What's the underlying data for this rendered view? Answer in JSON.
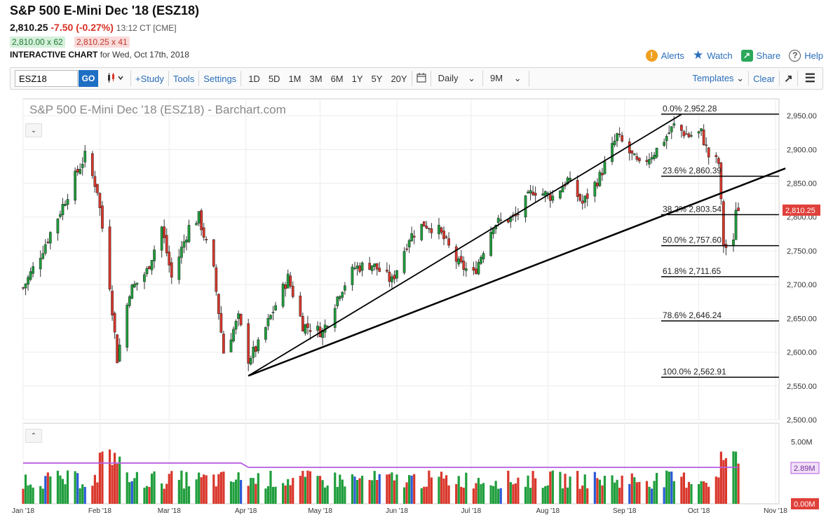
{
  "header": {
    "title": "S&P 500 E-Mini Dec '18 (ESZ18)",
    "last": "2,810.25",
    "change": "-7.50 (-0.27%)",
    "time": "13:12 CT [CME]",
    "bid": "2,810.00 x 62",
    "ask": "2,810.25 x 41",
    "interactive_label": "INTERACTIVE CHART",
    "date_text": "for Wed, Oct 17th, 2018"
  },
  "top_links": {
    "alerts": "Alerts",
    "watch": "Watch",
    "share": "Share",
    "help": "Help"
  },
  "toolbar": {
    "symbol_value": "ESZ18",
    "go": "GO",
    "study": "+Study",
    "tools": "Tools",
    "settings": "Settings",
    "periods": [
      "1D",
      "5D",
      "1M",
      "3M",
      "6M",
      "1Y",
      "5Y",
      "20Y"
    ],
    "interval": "Daily",
    "range": "9M",
    "templates": "Templates",
    "clear": "Clear"
  },
  "colors": {
    "up": "#1f9e3c",
    "down": "#d9362b",
    "blue": "#2a5bd7",
    "purple": "#b65ce0",
    "line": "#000000",
    "price_badge": "#e0403a"
  },
  "chart_data": {
    "type": "candlestick",
    "title": "S&P 500 E-Mini Dec '18 (ESZ18) - Barchart.com",
    "ylim": [
      2500,
      2975
    ],
    "yticks": [
      "2,950.00",
      "2,900.00",
      "2,850.00",
      "2,800.00",
      "2,750.00",
      "2,700.00",
      "2,650.00",
      "2,600.00",
      "2,550.00",
      "2,500.00"
    ],
    "xticks": [
      "Jan '18",
      "Feb '18",
      "Mar '18",
      "Apr '18",
      "May '18",
      "Jun '18",
      "Jul '18",
      "Aug '18",
      "Sep '18",
      "Oct '18",
      "Nov '18"
    ],
    "last_price_label": "2,810.25",
    "anchors": [
      [
        "2018-01-01",
        2695
      ],
      [
        "2018-01-08",
        2745
      ],
      [
        "2018-01-15",
        2800
      ],
      [
        "2018-01-22",
        2860
      ],
      [
        "2018-01-26",
        2890
      ],
      [
        "2018-01-31",
        2840
      ],
      [
        "2018-02-05",
        2700
      ],
      [
        "2018-02-08",
        2590
      ],
      [
        "2018-02-13",
        2690
      ],
      [
        "2018-02-20",
        2720
      ],
      [
        "2018-02-26",
        2785
      ],
      [
        "2018-03-02",
        2710
      ],
      [
        "2018-03-09",
        2785
      ],
      [
        "2018-03-13",
        2800
      ],
      [
        "2018-03-19",
        2720
      ],
      [
        "2018-03-23",
        2600
      ],
      [
        "2018-03-29",
        2650
      ],
      [
        "2018-04-02",
        2590
      ],
      [
        "2018-04-06",
        2610
      ],
      [
        "2018-04-13",
        2670
      ],
      [
        "2018-04-18",
        2710
      ],
      [
        "2018-04-24",
        2640
      ],
      [
        "2018-05-02",
        2630
      ],
      [
        "2018-05-09",
        2690
      ],
      [
        "2018-05-15",
        2725
      ],
      [
        "2018-05-22",
        2730
      ],
      [
        "2018-05-30",
        2705
      ],
      [
        "2018-06-06",
        2770
      ],
      [
        "2018-06-12",
        2790
      ],
      [
        "2018-06-18",
        2780
      ],
      [
        "2018-06-26",
        2730
      ],
      [
        "2018-07-02",
        2715
      ],
      [
        "2018-07-10",
        2790
      ],
      [
        "2018-07-19",
        2800
      ],
      [
        "2018-07-26",
        2840
      ],
      [
        "2018-08-03",
        2830
      ],
      [
        "2018-08-09",
        2855
      ],
      [
        "2018-08-15",
        2820
      ],
      [
        "2018-08-22",
        2860
      ],
      [
        "2018-08-29",
        2920
      ],
      [
        "2018-09-07",
        2875
      ],
      [
        "2018-09-14",
        2900
      ],
      [
        "2018-09-21",
        2935
      ],
      [
        "2018-09-27",
        2920
      ],
      [
        "2018-10-02",
        2925
      ],
      [
        "2018-10-05",
        2890
      ],
      [
        "2018-10-09",
        2880
      ],
      [
        "2018-10-11",
        2760
      ],
      [
        "2018-10-12",
        2755
      ],
      [
        "2018-10-15",
        2760
      ],
      [
        "2018-10-16",
        2815
      ],
      [
        "2018-10-17",
        2810
      ]
    ],
    "fibonacci": [
      {
        "label": "0.0% 2,952.28",
        "value": 2952.28
      },
      {
        "label": "23.6% 2,860.39",
        "value": 2860.39
      },
      {
        "label": "38.2% 2,803.54",
        "value": 2803.54
      },
      {
        "label": "50.0% 2,757.60",
        "value": 2757.6
      },
      {
        "label": "61.8% 2,711.65",
        "value": 2711.65
      },
      {
        "label": "78.6% 2,646.24",
        "value": 2646.24
      },
      {
        "label": "100.0% 2,562.91",
        "value": 2562.91
      }
    ],
    "trendlines": [
      {
        "from": [
          "2018-04-02",
          2565
        ],
        "to": [
          "2018-09-24",
          2952
        ]
      },
      {
        "from": [
          "2018-04-02",
          2565
        ],
        "to": [
          "2018-11-05",
          2872
        ]
      }
    ],
    "volume": {
      "ylim": [
        0,
        6.5
      ],
      "ytick": "5.00M",
      "avg_label": "2.89M",
      "min_label": "0.00M",
      "avg_value": 2.89
    }
  }
}
